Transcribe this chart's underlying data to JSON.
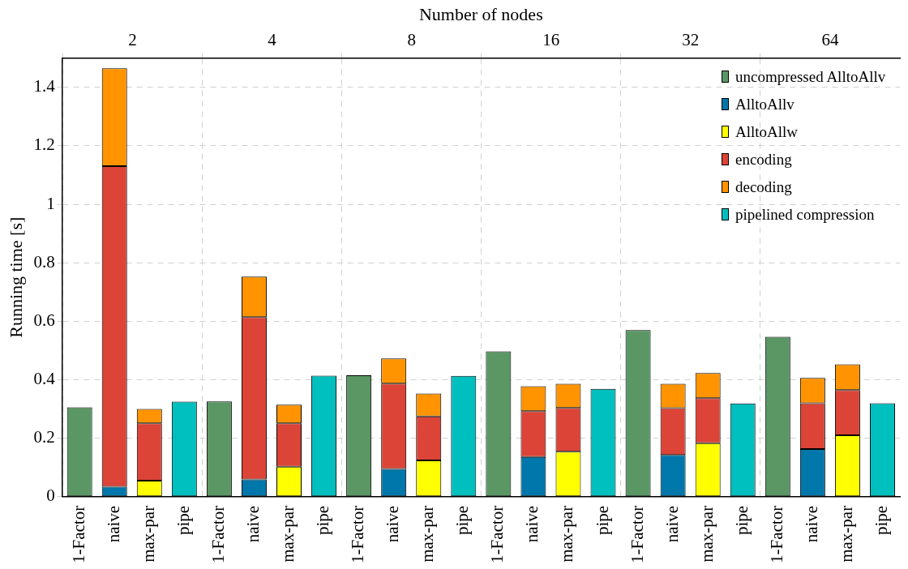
{
  "chart_data": {
    "type": "bar",
    "xlabel": null,
    "ylabel": "Running time [s]",
    "x2label": "Number of nodes",
    "categories": [
      "1-Factor",
      "naive",
      "max-par",
      "pipe",
      "1-Factor",
      "naive",
      "max-par",
      "pipe",
      "1-Factor",
      "naive",
      "max-par",
      "pipe",
      "1-Factor",
      "naive",
      "max-par",
      "pipe",
      "1-Factor",
      "naive",
      "max-par",
      "pipe",
      "1-Factor",
      "naive",
      "max-par",
      "pipe"
    ],
    "series": [
      {
        "name": "uncompressed AlltoAllv",
        "color": "#5a9764",
        "values": [
          0.306,
          null,
          null,
          null,
          0.326,
          null,
          null,
          null,
          0.415,
          null,
          null,
          null,
          0.497,
          null,
          null,
          null,
          0.57,
          null,
          null,
          null,
          0.547,
          null,
          null,
          null
        ]
      },
      {
        "name": "AlltoAllv",
        "color": "#0077aa",
        "values": [
          null,
          0.034,
          null,
          null,
          null,
          0.059,
          null,
          null,
          null,
          0.095,
          null,
          null,
          null,
          0.136,
          null,
          null,
          null,
          0.143,
          null,
          null,
          null,
          0.163,
          null,
          null
        ]
      },
      {
        "name": "AlltoAllw",
        "color": "#ffff00",
        "values": [
          null,
          null,
          0.055,
          null,
          null,
          null,
          0.103,
          null,
          null,
          null,
          0.124,
          null,
          null,
          null,
          0.154,
          null,
          null,
          null,
          0.183,
          null,
          null,
          null,
          0.21,
          null
        ]
      },
      {
        "name": "encoding",
        "color": "#dc4437",
        "values": [
          null,
          1.096,
          0.196,
          null,
          null,
          0.555,
          0.148,
          null,
          null,
          0.292,
          0.151,
          null,
          null,
          0.157,
          0.15,
          null,
          null,
          0.16,
          0.154,
          null,
          null,
          0.157,
          0.155,
          null
        ]
      },
      {
        "name": "decoding",
        "color": "#ff9400",
        "values": [
          null,
          0.335,
          0.049,
          null,
          null,
          0.139,
          0.064,
          null,
          null,
          0.086,
          0.078,
          null,
          null,
          0.085,
          0.082,
          null,
          null,
          0.083,
          0.086,
          null,
          null,
          0.086,
          0.088,
          null
        ]
      },
      {
        "name": "pipelined compression",
        "color": "#00bfbf",
        "values": [
          null,
          null,
          null,
          0.325,
          null,
          null,
          null,
          0.414,
          null,
          null,
          null,
          0.413,
          null,
          null,
          null,
          0.369,
          null,
          null,
          null,
          0.319,
          null,
          null,
          null,
          0.32
        ]
      }
    ],
    "stacked": true,
    "ylim": [
      0,
      1.5
    ],
    "yticks": [
      0,
      0.2,
      0.4,
      0.6,
      0.8,
      1,
      1.2,
      1.4
    ],
    "x2lim": [
      1.41,
      90.5
    ],
    "x2ticks": [
      2,
      4,
      8,
      16,
      32,
      64
    ],
    "log": "x2",
    "grid": true,
    "legend": "top right"
  }
}
